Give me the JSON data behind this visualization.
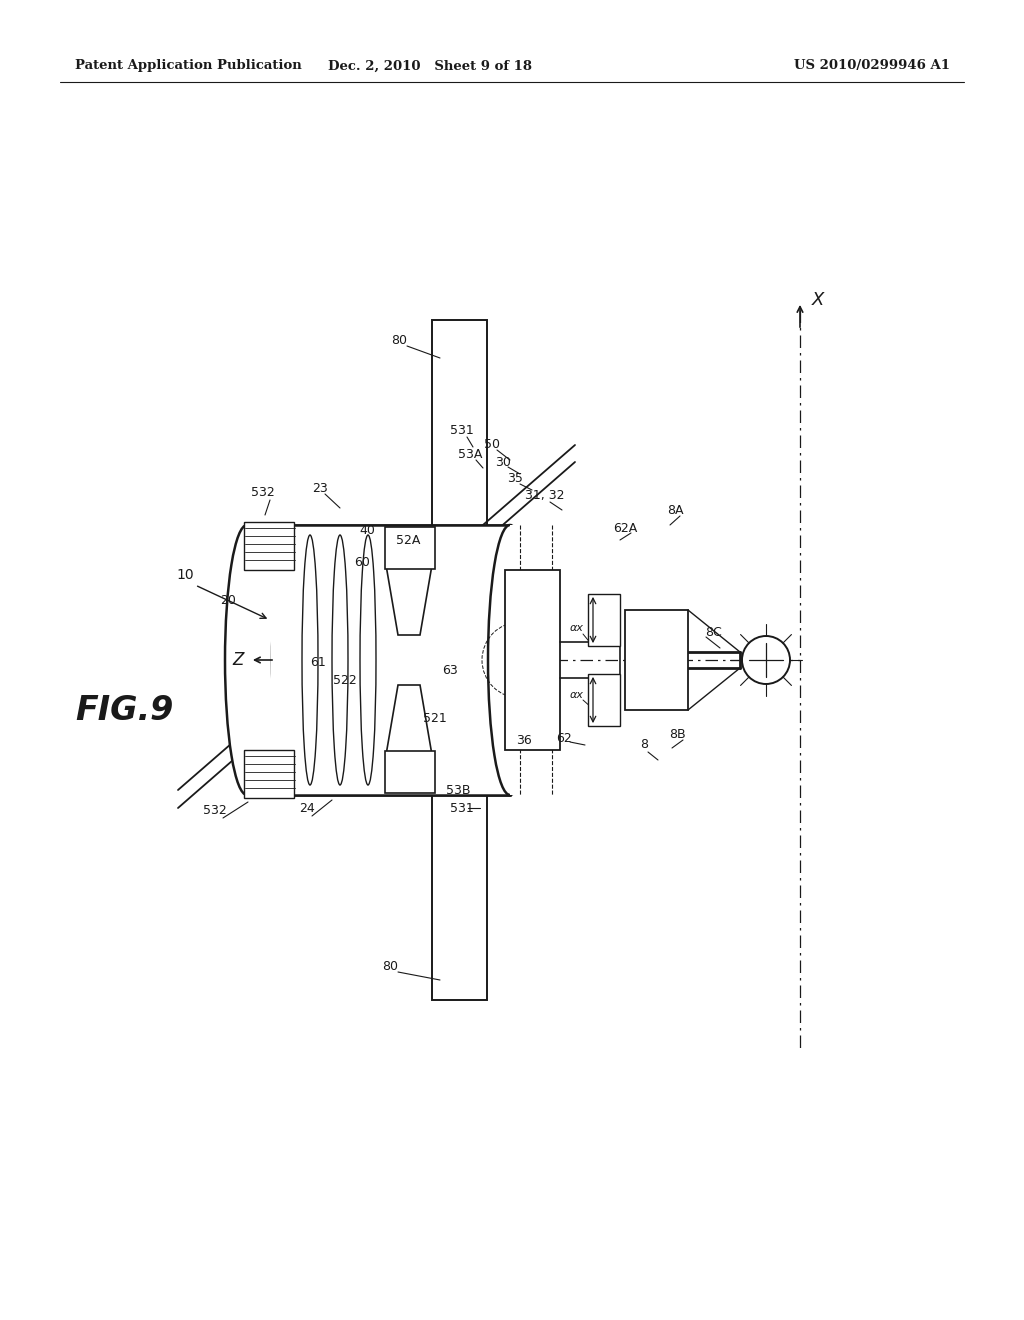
{
  "bg_color": "#ffffff",
  "line_color": "#1a1a1a",
  "header_left": "Patent Application Publication",
  "header_mid": "Dec. 2, 2010   Sheet 9 of 18",
  "header_right": "US 2010/0299946 A1"
}
